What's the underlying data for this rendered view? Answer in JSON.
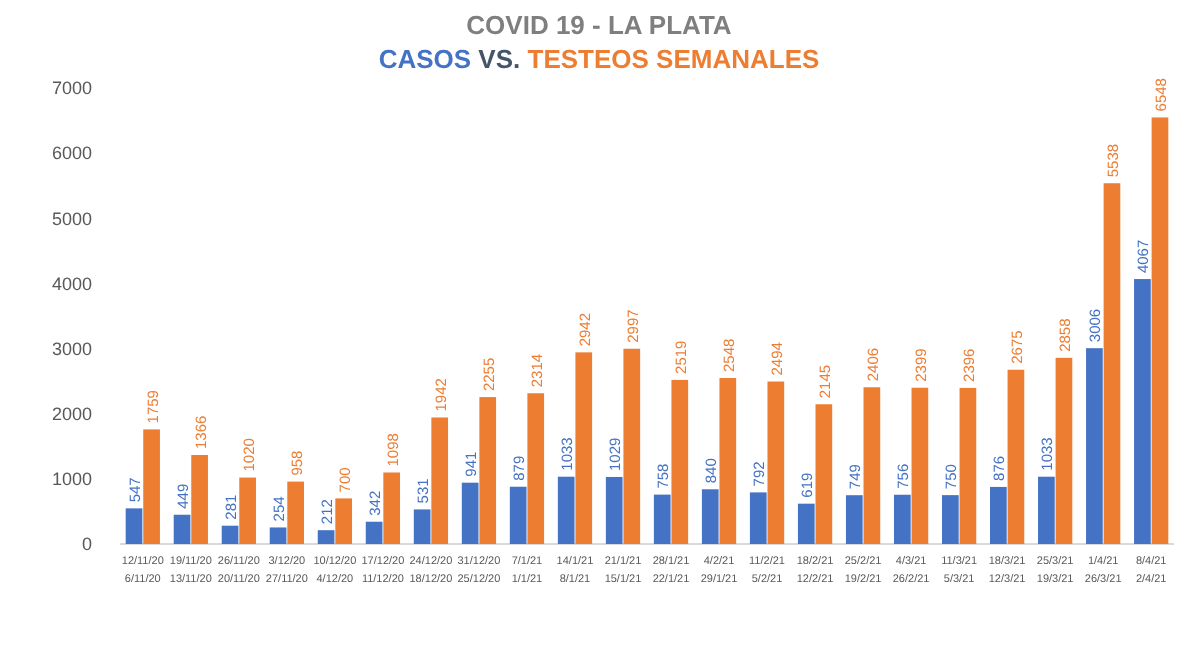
{
  "chart_data": {
    "type": "bar",
    "title": "COVID 19 - LA PLATA",
    "subtitle": "CASOS VS. TESTEOS SEMANALES",
    "categories": [
      "12/11/20\n6/11/20",
      "19/11/20\n13/11/20",
      "26/11/20\n20/11/20",
      "3/12/20\n27/11/20",
      "10/12/20\n4/12/20",
      "17/12/20\n11/12/20",
      "24/12/20\n18/12/20",
      "31/12/20\n25/12/20",
      "7/1/21\n1/1/21",
      "14/1/21\n8/1/21",
      "21/1/21\n15/1/21",
      "28/1/21\n22/1/21",
      "4/2/21\n29/1/21",
      "11/2/21\n5/2/21",
      "18/2/21\n12/2/21",
      "25/2/21\n19/2/21",
      "4/3/21\n26/2/21",
      "11/3/21\n5/3/21",
      "18/3/21\n12/3/21",
      "25/3/21\n19/3/21",
      "1/4/21\n26/3/21",
      "8/4/21\n2/4/21"
    ],
    "series": [
      {
        "color": "#4472c4",
        "values": [
          547,
          449,
          281,
          254,
          212,
          342,
          531,
          941,
          879,
          1033,
          1029,
          758,
          840,
          792,
          619,
          749,
          756,
          750,
          876,
          1033,
          3006,
          4067
        ]
      },
      {
        "color": "#ed7d31",
        "values": [
          1759,
          1366,
          1020,
          958,
          700,
          1098,
          1942,
          2255,
          2314,
          2942,
          2997,
          2519,
          2548,
          2494,
          2145,
          2406,
          2399,
          2396,
          2675,
          2858,
          5538,
          6548
        ]
      }
    ],
    "ylim": [
      0,
      7000
    ],
    "yticks": [
      0,
      1000,
      2000,
      3000,
      4000,
      5000,
      6000,
      7000
    ],
    "data_labels": true,
    "grid": false
  }
}
